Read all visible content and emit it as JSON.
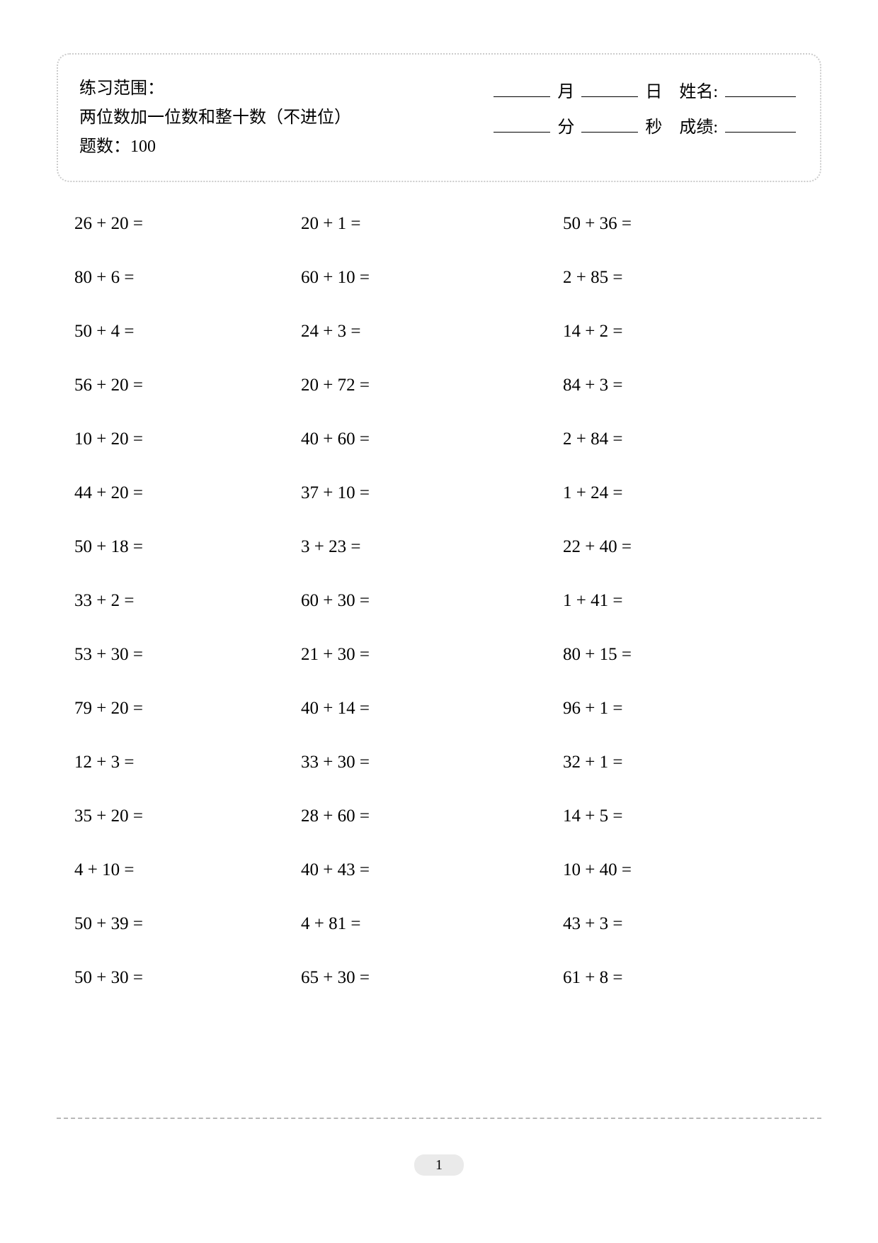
{
  "header": {
    "range_label": "练习范围：",
    "range_value": "两位数加一位数和整十数（不进位）",
    "count_label": "题数：",
    "count_value": "100",
    "month_label": "月",
    "day_label": "日",
    "name_label": "姓名:",
    "minute_label": "分",
    "second_label": "秒",
    "score_label": "成绩:"
  },
  "problems": {
    "rows": [
      [
        "26 + 20 =",
        "20 + 1 =",
        "50 + 36 ="
      ],
      [
        "80 + 6 =",
        "60 + 10 =",
        "2 + 85 ="
      ],
      [
        "50 + 4 =",
        "24 + 3 =",
        "14 + 2 ="
      ],
      [
        "56 + 20 =",
        "20 + 72 =",
        "84 + 3 ="
      ],
      [
        "10 + 20 =",
        "40 + 60 =",
        "2 + 84 ="
      ],
      [
        "44 + 20 =",
        "37 + 10 =",
        "1 + 24 ="
      ],
      [
        "50 + 18 =",
        "3 + 23 =",
        "22 + 40 ="
      ],
      [
        "33 + 2 =",
        "60 + 30 =",
        "1 + 41 ="
      ],
      [
        "53 + 30 =",
        "21 + 30 =",
        "80 + 15 ="
      ],
      [
        "79 + 20 =",
        "40 + 14 =",
        "96 + 1 ="
      ],
      [
        "12 + 3 =",
        "33 + 30 =",
        "32 + 1 ="
      ],
      [
        "35 + 20 =",
        "28 + 60 =",
        "14 + 5 ="
      ],
      [
        "4 + 10 =",
        "40 + 43 =",
        "10 + 40 ="
      ],
      [
        "50 + 39 =",
        "4 + 81 =",
        "43 + 3 ="
      ],
      [
        "50 + 30 =",
        "65 + 30 =",
        "61 + 8 ="
      ]
    ]
  },
  "page_number": "1",
  "style": {
    "background_color": "#ffffff",
    "text_color": "#000000",
    "border_color": "#cccccc",
    "dash_color": "#b8b8b8",
    "page_num_bg": "#eaeaea",
    "font_family": "Times New Roman",
    "problem_fontsize": 25,
    "header_fontsize": 24,
    "row_gap": 48
  }
}
